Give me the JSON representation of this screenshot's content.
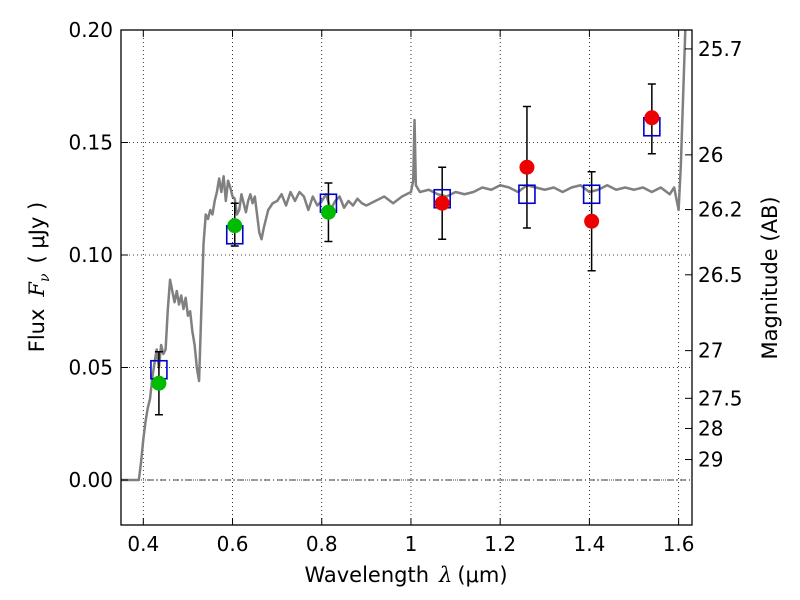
{
  "chart_data": {
    "type": "scatter",
    "xlabel": {
      "prefix": "Wavelength",
      "symbol": "λ",
      "unit": "(μm)"
    },
    "ylabel": {
      "prefix": "Flux",
      "symbol": "F",
      "subscript": "ν",
      "unit": "( μJy )"
    },
    "y2label": "Magnitude (AB)",
    "xlim": [
      0.35,
      1.63
    ],
    "ylim": [
      -0.02,
      0.2
    ],
    "x_ticks": [
      0.4,
      0.6,
      0.8,
      1.0,
      1.2,
      1.4,
      1.6
    ],
    "x_tick_labels": [
      "0.4",
      "0.6",
      "0.8",
      "1",
      "1.2",
      "1.4",
      "1.6"
    ],
    "y_ticks": [
      0.0,
      0.05,
      0.1,
      0.15,
      0.2
    ],
    "y_tick_labels": [
      "0.00",
      "0.05",
      "0.10",
      "0.15",
      "0.20"
    ],
    "right_ticks": [
      {
        "label": "25.7",
        "flux": 0.1916
      },
      {
        "label": "26",
        "flux": 0.1445
      },
      {
        "label": "26.2",
        "flux": 0.1202
      },
      {
        "label": "26.5",
        "flux": 0.0912
      },
      {
        "label": "27",
        "flux": 0.0575
      },
      {
        "label": "27.5",
        "flux": 0.0363
      },
      {
        "label": "28",
        "flux": 0.0229
      },
      {
        "label": "29",
        "flux": 0.0091
      }
    ],
    "grid": true,
    "zero_line": true,
    "colors": {
      "model_spectrum": "#808080",
      "model_photometry": "#0000cc",
      "green_points": "#00bb00",
      "red_points": "#ee0000",
      "error_bars": "#000000"
    },
    "series": [
      {
        "kind": "line",
        "values": [
          [
            0.35,
            0.0
          ],
          [
            0.39,
            0.0
          ],
          [
            0.395,
            0.008
          ],
          [
            0.4,
            0.018
          ],
          [
            0.405,
            0.026
          ],
          [
            0.41,
            0.032
          ],
          [
            0.415,
            0.036
          ],
          [
            0.42,
            0.045
          ],
          [
            0.425,
            0.052
          ],
          [
            0.43,
            0.058
          ],
          [
            0.435,
            0.05
          ],
          [
            0.44,
            0.06
          ],
          [
            0.445,
            0.056
          ],
          [
            0.45,
            0.058
          ],
          [
            0.455,
            0.076
          ],
          [
            0.46,
            0.089
          ],
          [
            0.465,
            0.084
          ],
          [
            0.47,
            0.079
          ],
          [
            0.475,
            0.084
          ],
          [
            0.48,
            0.078
          ],
          [
            0.485,
            0.082
          ],
          [
            0.49,
            0.076
          ],
          [
            0.495,
            0.081
          ],
          [
            0.5,
            0.073
          ],
          [
            0.505,
            0.075
          ],
          [
            0.51,
            0.066
          ],
          [
            0.515,
            0.06
          ],
          [
            0.52,
            0.05
          ],
          [
            0.525,
            0.044
          ],
          [
            0.53,
            0.075
          ],
          [
            0.535,
            0.105
          ],
          [
            0.54,
            0.118
          ],
          [
            0.545,
            0.116
          ],
          [
            0.55,
            0.12
          ],
          [
            0.555,
            0.118
          ],
          [
            0.56,
            0.124
          ],
          [
            0.565,
            0.128
          ],
          [
            0.57,
            0.134
          ],
          [
            0.575,
            0.128
          ],
          [
            0.58,
            0.135
          ],
          [
            0.585,
            0.124
          ],
          [
            0.59,
            0.133
          ],
          [
            0.595,
            0.13
          ],
          [
            0.6,
            0.126
          ],
          [
            0.605,
            0.125
          ],
          [
            0.61,
            0.118
          ],
          [
            0.615,
            0.12
          ],
          [
            0.62,
            0.127
          ],
          [
            0.625,
            0.123
          ],
          [
            0.63,
            0.119
          ],
          [
            0.635,
            0.124
          ],
          [
            0.64,
            0.127
          ],
          [
            0.645,
            0.123
          ],
          [
            0.65,
            0.126
          ],
          [
            0.655,
            0.118
          ],
          [
            0.66,
            0.11
          ],
          [
            0.665,
            0.107
          ],
          [
            0.67,
            0.112
          ],
          [
            0.675,
            0.116
          ],
          [
            0.68,
            0.12
          ],
          [
            0.69,
            0.123
          ],
          [
            0.7,
            0.124
          ],
          [
            0.71,
            0.127
          ],
          [
            0.72,
            0.122
          ],
          [
            0.73,
            0.128
          ],
          [
            0.74,
            0.124
          ],
          [
            0.75,
            0.128
          ],
          [
            0.76,
            0.126
          ],
          [
            0.77,
            0.12
          ],
          [
            0.78,
            0.126
          ],
          [
            0.79,
            0.122
          ],
          [
            0.8,
            0.124
          ],
          [
            0.81,
            0.127
          ],
          [
            0.82,
            0.12
          ],
          [
            0.83,
            0.124
          ],
          [
            0.84,
            0.126
          ],
          [
            0.85,
            0.121
          ],
          [
            0.86,
            0.124
          ],
          [
            0.87,
            0.122
          ],
          [
            0.88,
            0.125
          ],
          [
            0.89,
            0.123
          ],
          [
            0.9,
            0.122
          ],
          [
            0.92,
            0.124
          ],
          [
            0.94,
            0.126
          ],
          [
            0.96,
            0.123
          ],
          [
            0.98,
            0.126
          ],
          [
            1.0,
            0.128
          ],
          [
            1.005,
            0.133
          ],
          [
            1.008,
            0.16
          ],
          [
            1.011,
            0.131
          ],
          [
            1.02,
            0.128
          ],
          [
            1.04,
            0.129
          ],
          [
            1.06,
            0.127
          ],
          [
            1.08,
            0.126
          ],
          [
            1.1,
            0.128
          ],
          [
            1.12,
            0.127
          ],
          [
            1.14,
            0.128
          ],
          [
            1.16,
            0.13
          ],
          [
            1.18,
            0.129
          ],
          [
            1.2,
            0.131
          ],
          [
            1.22,
            0.13
          ],
          [
            1.24,
            0.128
          ],
          [
            1.26,
            0.131
          ],
          [
            1.28,
            0.13
          ],
          [
            1.3,
            0.129
          ],
          [
            1.32,
            0.13
          ],
          [
            1.34,
            0.128
          ],
          [
            1.36,
            0.13
          ],
          [
            1.38,
            0.131
          ],
          [
            1.4,
            0.128
          ],
          [
            1.42,
            0.129
          ],
          [
            1.44,
            0.131
          ],
          [
            1.46,
            0.129
          ],
          [
            1.48,
            0.13
          ],
          [
            1.5,
            0.129
          ],
          [
            1.52,
            0.13
          ],
          [
            1.54,
            0.128
          ],
          [
            1.56,
            0.13
          ],
          [
            1.58,
            0.127
          ],
          [
            1.59,
            0.13
          ],
          [
            1.6,
            0.12
          ],
          [
            1.605,
            0.14
          ],
          [
            1.61,
            0.17
          ],
          [
            1.615,
            0.2
          ]
        ]
      },
      {
        "kind": "squares",
        "points": [
          {
            "x": 0.435,
            "y": 0.049
          },
          {
            "x": 0.605,
            "y": 0.109
          },
          {
            "x": 0.815,
            "y": 0.123
          },
          {
            "x": 1.07,
            "y": 0.125
          },
          {
            "x": 1.26,
            "y": 0.127
          },
          {
            "x": 1.405,
            "y": 0.127
          },
          {
            "x": 1.54,
            "y": 0.157
          }
        ]
      },
      {
        "kind": "points-green",
        "points": [
          {
            "x": 0.435,
            "y": 0.043,
            "err_low": 0.029,
            "err_high": 0.057
          },
          {
            "x": 0.605,
            "y": 0.113,
            "err_low": 0.104,
            "err_high": 0.123
          },
          {
            "x": 0.815,
            "y": 0.119,
            "err_low": 0.106,
            "err_high": 0.132
          }
        ]
      },
      {
        "kind": "points-red",
        "points": [
          {
            "x": 1.07,
            "y": 0.123,
            "err_low": 0.107,
            "err_high": 0.139
          },
          {
            "x": 1.26,
            "y": 0.139,
            "err_low": 0.112,
            "err_high": 0.166
          },
          {
            "x": 1.405,
            "y": 0.115,
            "err_low": 0.093,
            "err_high": 0.137
          },
          {
            "x": 1.54,
            "y": 0.161,
            "err_low": 0.145,
            "err_high": 0.176
          }
        ]
      }
    ]
  }
}
